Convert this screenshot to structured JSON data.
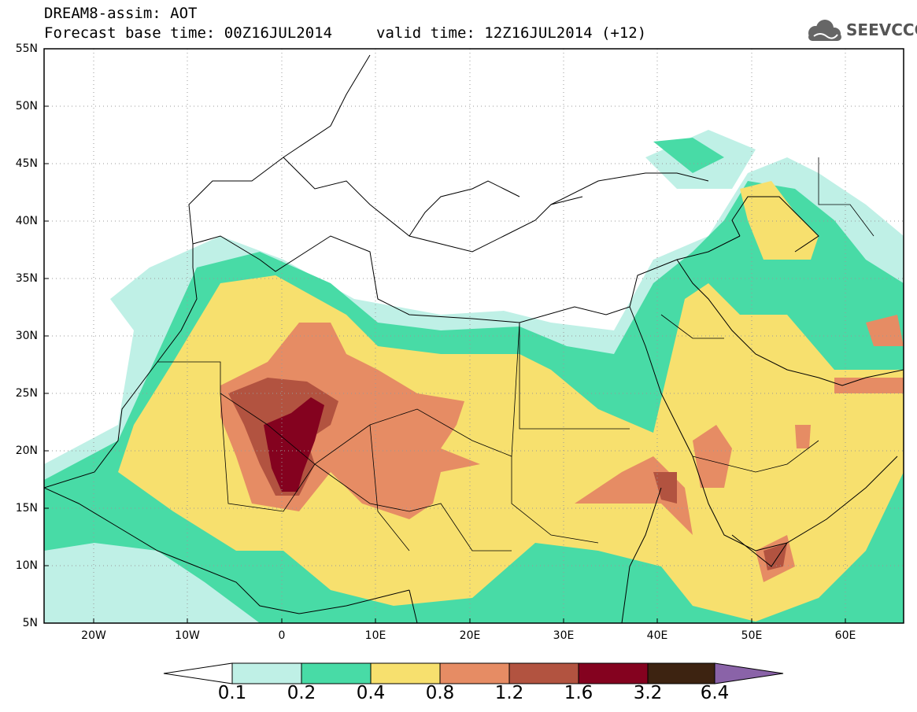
{
  "header": {
    "title": "DREAM8-assim: AOT",
    "base_time": "Forecast base time: 00Z16JUL2014",
    "valid_time": "valid time: 12Z16JUL2014 (+12)",
    "logo_text": "SEEVCCC",
    "logo_icon": "cloud-icon"
  },
  "map": {
    "lat_labels": [
      "55N",
      "50N",
      "45N",
      "40N",
      "35N",
      "30N",
      "25N",
      "20N",
      "15N",
      "10N",
      "5N"
    ],
    "lon_labels": [
      "20W",
      "10W",
      "0",
      "10E",
      "20E",
      "30E",
      "40E",
      "50E",
      "60E"
    ],
    "lat_range": [
      5,
      55
    ],
    "lon_range": [
      -25,
      65
    ],
    "grid": "dotted"
  },
  "colorbar": {
    "levels": [
      "0.1",
      "0.2",
      "0.4",
      "0.8",
      "1.2",
      "1.6",
      "3.2",
      "6.4"
    ],
    "colors": [
      "#ffffff",
      "#bff0e6",
      "#48dba6",
      "#f7e06e",
      "#e68c64",
      "#b25340",
      "#84021f",
      "#3d2311",
      "#8a63a8"
    ]
  }
}
